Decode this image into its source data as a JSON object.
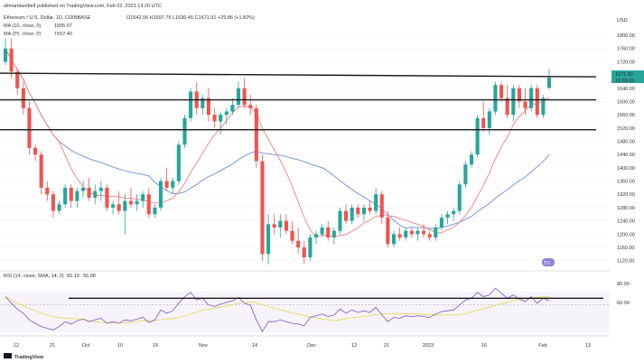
{
  "header": {
    "publisher": "elimandanibell published on TradingView.com, Feb 02, 2023 13:20 UTC",
    "symbol": "Ethereum / U.S. Dollar, 1D, COINBASE",
    "ohlc": "O1642.06 H1697.76 L1636.45 C1671.91 +29.86 (+1.82%)",
    "ma10": "MA (10, close, 0)",
    "ma10_value": "1605.07",
    "ma25": "MA (25, close, 0)",
    "ma25_value": "1552.40"
  },
  "price_axis": {
    "currency": "USD",
    "ticks": [
      "1800.00",
      "1760.00",
      "1720.00",
      "1680.00",
      "1640.00",
      "1600.00",
      "1560.00",
      "1520.00",
      "1480.00",
      "1440.00",
      "1400.00",
      "1360.00",
      "1320.00",
      "1280.00",
      "1240.00",
      "1200.00",
      "1160.00",
      "1120.00"
    ],
    "current_price": "1671.92",
    "countdown": "10:39:26"
  },
  "rsi": {
    "label": "RSI (14, close, SMA, 14, 2)",
    "value1": "65.10",
    "value2": "56.98",
    "ticks": [
      "80.00",
      "60.00"
    ]
  },
  "time_axis": [
    "12",
    "21",
    "Oct",
    "10",
    "19",
    "Nov",
    "14",
    "Dec",
    "12",
    "21",
    "2023",
    "16",
    "Feb",
    "13"
  ],
  "footer": {
    "brand": "TradingView"
  },
  "colors": {
    "up": "#26a69a",
    "down": "#ef5350",
    "ma10": "#f08080",
    "ma25": "#6a8fd8",
    "rsi": "#7e57c2",
    "rsi_ma": "#e6d84a",
    "line": "#1a1a1a"
  },
  "chart_data": {
    "type": "candlestick",
    "title": "Ethereum / U.S. Dollar, 1D, COINBASE",
    "ylim": [
      1100,
      1830
    ],
    "support_resistance": [
      1680,
      1605,
      1515
    ],
    "candles": [
      [
        1720,
        1790,
        1710,
        1760
      ],
      [
        1760,
        1790,
        1670,
        1690
      ],
      [
        1690,
        1700,
        1620,
        1640
      ],
      [
        1640,
        1660,
        1560,
        1580
      ],
      [
        1580,
        1600,
        1440,
        1460
      ],
      [
        1460,
        1470,
        1420,
        1440
      ],
      [
        1440,
        1450,
        1320,
        1340
      ],
      [
        1340,
        1360,
        1300,
        1320
      ],
      [
        1320,
        1330,
        1250,
        1270
      ],
      [
        1270,
        1300,
        1260,
        1290
      ],
      [
        1290,
        1350,
        1280,
        1340
      ],
      [
        1340,
        1350,
        1280,
        1300
      ],
      [
        1300,
        1340,
        1280,
        1330
      ],
      [
        1330,
        1360,
        1310,
        1340
      ],
      [
        1340,
        1370,
        1300,
        1310
      ],
      [
        1310,
        1350,
        1290,
        1330
      ],
      [
        1330,
        1360,
        1300,
        1340
      ],
      [
        1340,
        1350,
        1270,
        1280
      ],
      [
        1280,
        1300,
        1260,
        1290
      ],
      [
        1290,
        1330,
        1260,
        1270
      ],
      [
        1270,
        1320,
        1200,
        1300
      ],
      [
        1300,
        1340,
        1280,
        1290
      ],
      [
        1290,
        1320,
        1270,
        1300
      ],
      [
        1300,
        1330,
        1280,
        1320
      ],
      [
        1320,
        1340,
        1250,
        1260
      ],
      [
        1260,
        1290,
        1250,
        1280
      ],
      [
        1280,
        1370,
        1270,
        1360
      ],
      [
        1360,
        1400,
        1330,
        1340
      ],
      [
        1340,
        1370,
        1320,
        1360
      ],
      [
        1360,
        1480,
        1350,
        1470
      ],
      [
        1470,
        1560,
        1460,
        1550
      ],
      [
        1550,
        1640,
        1540,
        1630
      ],
      [
        1630,
        1660,
        1560,
        1580
      ],
      [
        1580,
        1620,
        1560,
        1610
      ],
      [
        1610,
        1640,
        1540,
        1560
      ],
      [
        1560,
        1580,
        1520,
        1540
      ],
      [
        1540,
        1570,
        1500,
        1560
      ],
      [
        1560,
        1580,
        1530,
        1570
      ],
      [
        1570,
        1610,
        1560,
        1590
      ],
      [
        1590,
        1660,
        1580,
        1640
      ],
      [
        1640,
        1670,
        1580,
        1590
      ],
      [
        1590,
        1620,
        1560,
        1580
      ],
      [
        1580,
        1590,
        1400,
        1420
      ],
      [
        1420,
        1440,
        1120,
        1140
      ],
      [
        1140,
        1260,
        1110,
        1230
      ],
      [
        1230,
        1260,
        1200,
        1220
      ],
      [
        1220,
        1260,
        1190,
        1240
      ],
      [
        1240,
        1260,
        1200,
        1210
      ],
      [
        1210,
        1240,
        1170,
        1180
      ],
      [
        1180,
        1220,
        1140,
        1160
      ],
      [
        1160,
        1180,
        1110,
        1130
      ],
      [
        1130,
        1200,
        1120,
        1190
      ],
      [
        1190,
        1210,
        1170,
        1200
      ],
      [
        1200,
        1230,
        1190,
        1220
      ],
      [
        1220,
        1240,
        1180,
        1190
      ],
      [
        1190,
        1220,
        1170,
        1210
      ],
      [
        1210,
        1280,
        1200,
        1270
      ],
      [
        1270,
        1290,
        1230,
        1240
      ],
      [
        1240,
        1290,
        1230,
        1280
      ],
      [
        1280,
        1290,
        1250,
        1260
      ],
      [
        1260,
        1290,
        1240,
        1280
      ],
      [
        1280,
        1300,
        1260,
        1270
      ],
      [
        1270,
        1340,
        1260,
        1320
      ],
      [
        1320,
        1330,
        1230,
        1250
      ],
      [
        1250,
        1270,
        1160,
        1170
      ],
      [
        1170,
        1210,
        1160,
        1200
      ],
      [
        1200,
        1220,
        1180,
        1190
      ],
      [
        1190,
        1220,
        1180,
        1210
      ],
      [
        1210,
        1220,
        1190,
        1200
      ],
      [
        1200,
        1220,
        1180,
        1210
      ],
      [
        1210,
        1230,
        1190,
        1200
      ],
      [
        1200,
        1210,
        1180,
        1190
      ],
      [
        1190,
        1230,
        1180,
        1220
      ],
      [
        1220,
        1260,
        1210,
        1250
      ],
      [
        1250,
        1270,
        1230,
        1260
      ],
      [
        1260,
        1280,
        1240,
        1270
      ],
      [
        1270,
        1360,
        1260,
        1350
      ],
      [
        1350,
        1420,
        1340,
        1410
      ],
      [
        1410,
        1450,
        1400,
        1440
      ],
      [
        1440,
        1560,
        1430,
        1550
      ],
      [
        1550,
        1600,
        1510,
        1520
      ],
      [
        1520,
        1580,
        1500,
        1570
      ],
      [
        1570,
        1660,
        1560,
        1650
      ],
      [
        1650,
        1660,
        1600,
        1610
      ],
      [
        1610,
        1650,
        1550,
        1560
      ],
      [
        1560,
        1650,
        1540,
        1640
      ],
      [
        1640,
        1650,
        1580,
        1600
      ],
      [
        1600,
        1640,
        1560,
        1580
      ],
      [
        1580,
        1650,
        1570,
        1640
      ],
      [
        1640,
        1650,
        1550,
        1560
      ],
      [
        1560,
        1620,
        1550,
        1610
      ],
      [
        1642,
        1698,
        1636,
        1672
      ]
    ],
    "rsi_series": [
      70,
      62,
      55,
      50,
      42,
      38,
      34,
      32,
      30,
      34,
      40,
      37,
      41,
      43,
      40,
      42,
      44,
      38,
      40,
      38,
      42,
      41,
      43,
      45,
      39,
      42,
      54,
      50,
      53,
      62,
      70,
      75,
      66,
      68,
      60,
      58,
      61,
      63,
      65,
      69,
      62,
      60,
      42,
      28,
      40,
      40,
      42,
      40,
      38,
      37,
      35,
      45,
      47,
      49,
      46,
      48,
      55,
      50,
      54,
      51,
      53,
      51,
      57,
      48,
      40,
      45,
      44,
      47,
      46,
      47,
      46,
      45,
      49,
      52,
      53,
      54,
      60,
      66,
      68,
      75,
      70,
      72,
      80,
      74,
      68,
      72,
      67,
      64,
      70,
      62,
      68,
      65
    ],
    "rsi_ylim": [
      25,
      90
    ],
    "rsi_level": 68
  }
}
